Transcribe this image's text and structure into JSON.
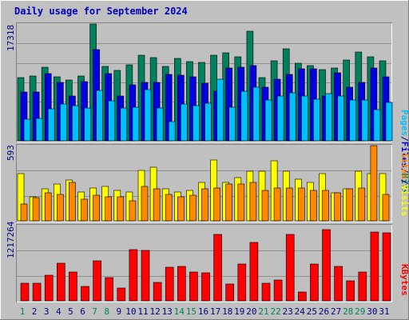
{
  "title": "Daily usage for September 2024",
  "chart_data": [
    {
      "type": "bar",
      "panel": "hits-files-pages",
      "y_max_label": "17318",
      "ylim": [
        0,
        17318
      ],
      "categories": [
        "1",
        "2",
        "3",
        "4",
        "5",
        "6",
        "7",
        "8",
        "9",
        "10",
        "11",
        "12",
        "13",
        "14",
        "15",
        "16",
        "17",
        "18",
        "19",
        "20",
        "21",
        "22",
        "23",
        "24",
        "25",
        "26",
        "27",
        "28",
        "29",
        "30",
        "31"
      ],
      "series": [
        {
          "name": "Hits",
          "color": "#00805c",
          "values": [
            9400,
            9600,
            10900,
            9500,
            9000,
            9600,
            17300,
            11000,
            10400,
            11300,
            12700,
            12300,
            11000,
            12200,
            11700,
            11600,
            12700,
            13100,
            12500,
            16300,
            9400,
            11900,
            13700,
            11500,
            11200,
            10600,
            10800,
            12000,
            13200,
            12400,
            11900
          ]
        },
        {
          "name": "Files",
          "color": "#0000e0",
          "values": [
            7200,
            7200,
            10000,
            8700,
            6700,
            8800,
            13500,
            10000,
            6700,
            8300,
            8600,
            8700,
            9800,
            9700,
            9500,
            8500,
            7400,
            10800,
            10900,
            11200,
            8000,
            9100,
            9800,
            10700,
            10700,
            6700,
            10100,
            8000,
            8600,
            10800,
            9500
          ]
        },
        {
          "name": "Pages",
          "color": "#00c0ff",
          "values": [
            3200,
            3300,
            4800,
            5500,
            5200,
            4900,
            7500,
            5900,
            4900,
            5000,
            7600,
            4900,
            2800,
            5400,
            5200,
            5600,
            9100,
            5000,
            7300,
            7900,
            6000,
            6600,
            7100,
            6600,
            6200,
            7000,
            6700,
            6100,
            6100,
            4600,
            5700
          ]
        }
      ]
    },
    {
      "type": "bar",
      "panel": "visits-sites",
      "y_max_label": "593",
      "ylim": [
        0,
        593
      ],
      "categories": [
        "1",
        "2",
        "3",
        "4",
        "5",
        "6",
        "7",
        "8",
        "9",
        "10",
        "11",
        "12",
        "13",
        "14",
        "15",
        "16",
        "17",
        "18",
        "19",
        "20",
        "21",
        "22",
        "23",
        "24",
        "25",
        "26",
        "27",
        "28",
        "29",
        "30",
        "31"
      ],
      "series": [
        {
          "name": "Visits",
          "color": "#ffff00",
          "values": [
            370,
            190,
            250,
            290,
            320,
            230,
            260,
            270,
            240,
            230,
            400,
            420,
            250,
            230,
            240,
            300,
            480,
            300,
            340,
            390,
            390,
            470,
            390,
            330,
            300,
            370,
            220,
            250,
            390,
            370,
            370
          ]
        },
        {
          "name": "Sites",
          "color": "#ff8800",
          "values": [
            130,
            180,
            220,
            210,
            300,
            170,
            200,
            190,
            190,
            160,
            270,
            250,
            210,
            190,
            200,
            250,
            260,
            290,
            290,
            300,
            240,
            260,
            260,
            260,
            240,
            240,
            220,
            250,
            260,
            593,
            210
          ]
        }
      ]
    },
    {
      "type": "bar",
      "panel": "kbytes",
      "y_max_label": "1217264",
      "ylim": [
        0,
        1217264
      ],
      "categories": [
        "1",
        "2",
        "3",
        "4",
        "5",
        "6",
        "7",
        "8",
        "9",
        "10",
        "11",
        "12",
        "13",
        "14",
        "15",
        "16",
        "17",
        "18",
        "19",
        "20",
        "21",
        "22",
        "23",
        "24",
        "25",
        "26",
        "27",
        "28",
        "29",
        "30",
        "31"
      ],
      "series": [
        {
          "name": "KBytes",
          "color": "#ff0000",
          "values": [
            280000,
            280000,
            420000,
            610000,
            460000,
            230000,
            650000,
            370000,
            210000,
            830000,
            810000,
            300000,
            550000,
            560000,
            470000,
            450000,
            1070000,
            270000,
            600000,
            950000,
            280000,
            340000,
            1080000,
            140000,
            600000,
            1150000,
            560000,
            320000,
            460000,
            1120000,
            1100000
          ]
        }
      ]
    }
  ],
  "x_labels": {
    "days": [
      "1",
      "2",
      "3",
      "4",
      "5",
      "6",
      "7",
      "8",
      "9",
      "10",
      "11",
      "12",
      "13",
      "14",
      "15",
      "16",
      "17",
      "18",
      "19",
      "20",
      "21",
      "22",
      "23",
      "24",
      "25",
      "26",
      "27",
      "28",
      "29",
      "30",
      "31"
    ],
    "weekend_days": [
      "1",
      "7",
      "8",
      "14",
      "15",
      "21",
      "22",
      "28",
      "29"
    ],
    "weekday_color": "#000080",
    "weekend_color": "#00805c"
  },
  "right_labels": {
    "panel1": [
      {
        "text": "Pages",
        "color": "#00c0ff"
      },
      {
        "text": "/",
        "color": "#000080"
      },
      {
        "text": "Files",
        "color": "#0000e0"
      },
      {
        "text": "/",
        "color": "#000080"
      },
      {
        "text": "Hits",
        "color": "#00805c"
      }
    ],
    "panel2": [
      {
        "text": "Sites",
        "color": "#ff8800"
      },
      {
        "text": "/",
        "color": "#000080"
      },
      {
        "text": "Visits",
        "color": "#ffff00"
      }
    ],
    "panel3": [
      {
        "text": "KBytes",
        "color": "#ff0000"
      }
    ]
  },
  "colors": {
    "background": "#c0c0c0",
    "frame_light": "#ffffff",
    "frame_dark": "#808080",
    "gridline": "#909090",
    "axis_text": "#000080",
    "title": "#0000c0"
  }
}
